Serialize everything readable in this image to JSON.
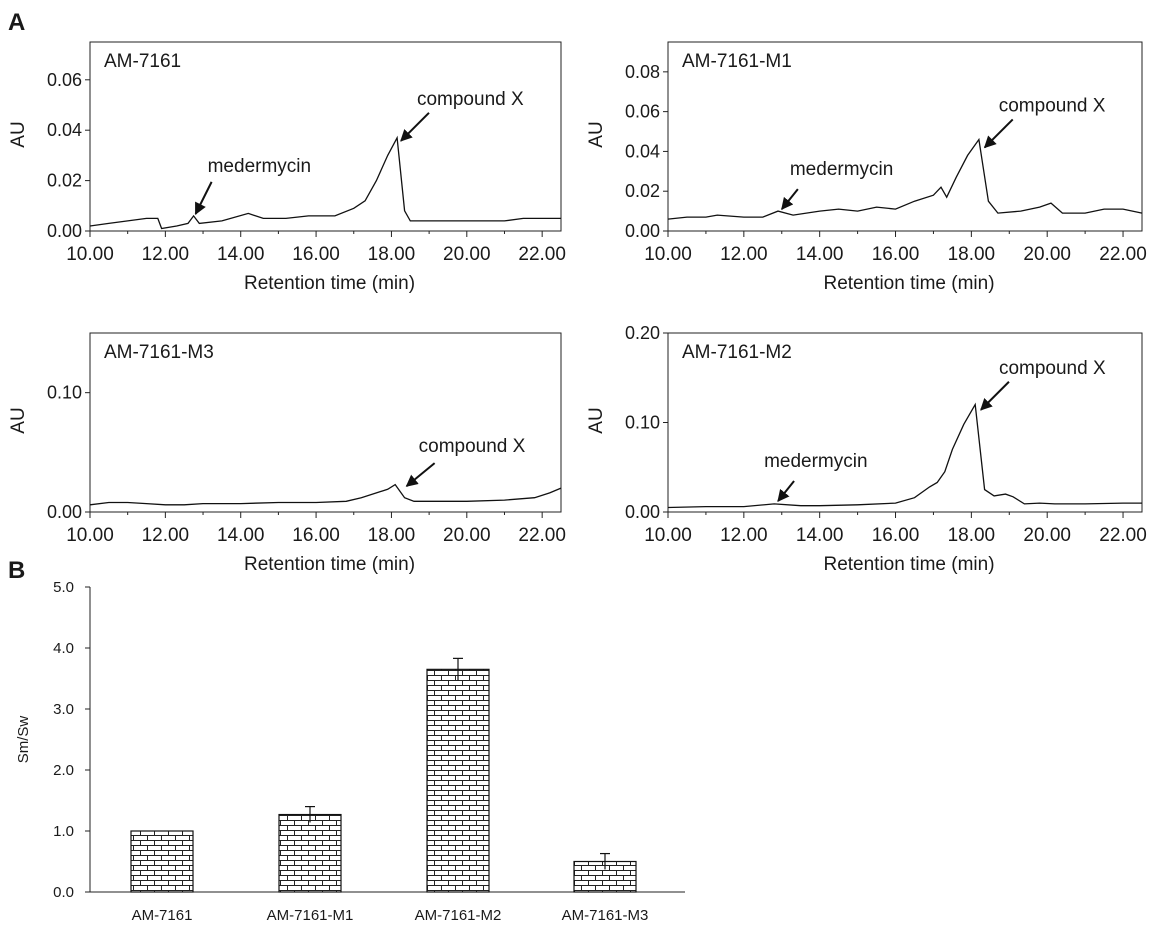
{
  "panel_labels": {
    "a": "A",
    "b": "B"
  },
  "chart_data": [
    {
      "type": "line",
      "panel_label": "AM-7161",
      "xlabel": "Retention time (min)",
      "ylabel": "AU",
      "xlim": [
        10,
        22.5
      ],
      "ylim": [
        0,
        0.075
      ],
      "xticks": [
        "10.00",
        "12.00",
        "14.00",
        "16.00",
        "18.00",
        "20.00",
        "22.00"
      ],
      "yticks": [
        "0.00",
        "0.02",
        "0.04",
        "0.06"
      ],
      "ytick_values": [
        0,
        0.02,
        0.04,
        0.06
      ],
      "series": [
        {
          "values": [
            [
              10,
              0.002
            ],
            [
              10.5,
              0.003
            ],
            [
              11,
              0.004
            ],
            [
              11.5,
              0.005
            ],
            [
              11.8,
              0.005
            ],
            [
              11.9,
              0.001
            ],
            [
              12.3,
              0.002
            ],
            [
              12.6,
              0.003
            ],
            [
              12.75,
              0.006
            ],
            [
              12.9,
              0.003
            ],
            [
              13.5,
              0.004
            ],
            [
              14.2,
              0.007
            ],
            [
              14.6,
              0.005
            ],
            [
              15.2,
              0.005
            ],
            [
              15.8,
              0.006
            ],
            [
              16.5,
              0.006
            ],
            [
              17,
              0.009
            ],
            [
              17.3,
              0.012
            ],
            [
              17.6,
              0.02
            ],
            [
              17.9,
              0.03
            ],
            [
              18.15,
              0.037
            ],
            [
              18.35,
              0.008
            ],
            [
              18.5,
              0.004
            ],
            [
              19,
              0.004
            ],
            [
              20,
              0.004
            ],
            [
              21,
              0.004
            ],
            [
              21.5,
              0.005
            ],
            [
              22,
              0.005
            ],
            [
              22.5,
              0.005
            ]
          ]
        }
      ],
      "annotations": [
        {
          "text": "medermycin",
          "x": 12.75,
          "y": 0.006
        },
        {
          "text": "compound X",
          "x": 18.2,
          "y": 0.035
        }
      ]
    },
    {
      "type": "line",
      "panel_label": "AM-7161-M1",
      "xlabel": "Retention time (min)",
      "ylabel": "AU",
      "xlim": [
        10,
        22.5
      ],
      "ylim": [
        0,
        0.095
      ],
      "xticks": [
        "10.00",
        "12.00",
        "14.00",
        "16.00",
        "18.00",
        "20.00",
        "22.00"
      ],
      "yticks": [
        "0.00",
        "0.02",
        "0.04",
        "0.06",
        "0.08"
      ],
      "ytick_values": [
        0,
        0.02,
        0.04,
        0.06,
        0.08
      ],
      "series": [
        {
          "values": [
            [
              10,
              0.006
            ],
            [
              10.5,
              0.007
            ],
            [
              11,
              0.007
            ],
            [
              11.3,
              0.008
            ],
            [
              12,
              0.007
            ],
            [
              12.5,
              0.007
            ],
            [
              12.9,
              0.01
            ],
            [
              13.3,
              0.008
            ],
            [
              14,
              0.01
            ],
            [
              14.5,
              0.011
            ],
            [
              15,
              0.01
            ],
            [
              15.5,
              0.012
            ],
            [
              16,
              0.011
            ],
            [
              16.5,
              0.015
            ],
            [
              17,
              0.018
            ],
            [
              17.2,
              0.022
            ],
            [
              17.35,
              0.017
            ],
            [
              17.6,
              0.027
            ],
            [
              17.9,
              0.038
            ],
            [
              18.2,
              0.046
            ],
            [
              18.45,
              0.015
            ],
            [
              18.7,
              0.009
            ],
            [
              19.3,
              0.01
            ],
            [
              19.8,
              0.012
            ],
            [
              20.1,
              0.014
            ],
            [
              20.4,
              0.009
            ],
            [
              21,
              0.009
            ],
            [
              21.5,
              0.011
            ],
            [
              22,
              0.011
            ],
            [
              22.5,
              0.009
            ]
          ]
        }
      ],
      "annotations": [
        {
          "text": "medermycin",
          "x": 12.95,
          "y": 0.01
        },
        {
          "text": "compound X",
          "x": 18.3,
          "y": 0.041
        }
      ]
    },
    {
      "type": "line",
      "panel_label": "AM-7161-M3",
      "xlabel": "Retention time (min)",
      "ylabel": "AU",
      "xlim": [
        10,
        22.5
      ],
      "ylim": [
        0,
        0.15
      ],
      "xticks": [
        "10.00",
        "12.00",
        "14.00",
        "16.00",
        "18.00",
        "20.00",
        "22.00"
      ],
      "yticks": [
        "0.00",
        "0.10"
      ],
      "ytick_values": [
        0,
        0.1
      ],
      "series": [
        {
          "values": [
            [
              10,
              0.006
            ],
            [
              10.5,
              0.008
            ],
            [
              11,
              0.008
            ],
            [
              11.5,
              0.007
            ],
            [
              12,
              0.006
            ],
            [
              12.5,
              0.006
            ],
            [
              13,
              0.007
            ],
            [
              13.5,
              0.007
            ],
            [
              14,
              0.007
            ],
            [
              15,
              0.008
            ],
            [
              16,
              0.008
            ],
            [
              16.8,
              0.009
            ],
            [
              17.2,
              0.012
            ],
            [
              17.6,
              0.016
            ],
            [
              17.9,
              0.019
            ],
            [
              18.1,
              0.023
            ],
            [
              18.35,
              0.012
            ],
            [
              18.6,
              0.009
            ],
            [
              19,
              0.009
            ],
            [
              20,
              0.009
            ],
            [
              21,
              0.01
            ],
            [
              21.8,
              0.012
            ],
            [
              22.2,
              0.016
            ],
            [
              22.5,
              0.02
            ]
          ]
        }
      ],
      "annotations": [
        {
          "text": "compound X",
          "x": 18.35,
          "y": 0.02
        }
      ]
    },
    {
      "type": "line",
      "panel_label": "AM-7161-M2",
      "xlabel": "Retention time (min)",
      "ylabel": "AU",
      "xlim": [
        10,
        22.5
      ],
      "ylim": [
        0,
        0.2
      ],
      "xticks": [
        "10.00",
        "12.00",
        "14.00",
        "16.00",
        "18.00",
        "20.00",
        "22.00"
      ],
      "yticks": [
        "0.00",
        "0.10",
        "0.20"
      ],
      "ytick_values": [
        0,
        0.1,
        0.2
      ],
      "series": [
        {
          "values": [
            [
              10,
              0.005
            ],
            [
              11,
              0.006
            ],
            [
              12,
              0.006
            ],
            [
              12.8,
              0.009
            ],
            [
              13.5,
              0.007
            ],
            [
              14,
              0.007
            ],
            [
              15,
              0.008
            ],
            [
              16,
              0.01
            ],
            [
              16.5,
              0.016
            ],
            [
              16.9,
              0.028
            ],
            [
              17.1,
              0.033
            ],
            [
              17.3,
              0.045
            ],
            [
              17.5,
              0.07
            ],
            [
              17.8,
              0.098
            ],
            [
              18.1,
              0.12
            ],
            [
              18.35,
              0.025
            ],
            [
              18.6,
              0.018
            ],
            [
              18.9,
              0.02
            ],
            [
              19.1,
              0.017
            ],
            [
              19.4,
              0.009
            ],
            [
              19.8,
              0.01
            ],
            [
              20.2,
              0.009
            ],
            [
              21,
              0.009
            ],
            [
              22,
              0.01
            ],
            [
              22.5,
              0.01
            ]
          ]
        }
      ],
      "annotations": [
        {
          "text": "medermycin",
          "x": 12.85,
          "y": 0.01
        },
        {
          "text": "compound X",
          "x": 18.2,
          "y": 0.112
        }
      ]
    },
    {
      "type": "bar",
      "categories": [
        "AM-7161",
        "AM-7161-M1",
        "AM-7161-M2",
        "AM-7161-M3"
      ],
      "values": [
        1.0,
        1.27,
        3.65,
        0.5
      ],
      "errors": [
        0.0,
        0.13,
        0.18,
        0.13
      ],
      "ylabel": "Sm/Sw",
      "ylim": [
        0,
        5
      ],
      "yticks": [
        "0.0",
        "1.0",
        "2.0",
        "3.0",
        "4.0",
        "5.0"
      ],
      "ytick_values": [
        0,
        1,
        2,
        3,
        4,
        5
      ]
    }
  ]
}
